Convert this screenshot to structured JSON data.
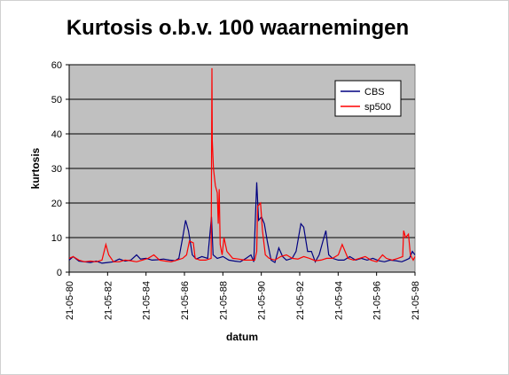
{
  "chart_data": {
    "type": "line",
    "title": "Kurtosis o.b.v. 100 waarnemingen",
    "xlabel": "datum",
    "ylabel": "kurtosis",
    "ylim": [
      0,
      60
    ],
    "yticks": [
      0,
      10,
      20,
      30,
      40,
      50,
      60
    ],
    "xlim": [
      "1980-05-21",
      "1998-05-21"
    ],
    "xticks": [
      "21-05-80",
      "21-05-82",
      "21-05-84",
      "21-05-86",
      "21-05-88",
      "21-05-90",
      "21-05-92",
      "21-05-94",
      "21-05-96",
      "21-05-98"
    ],
    "grid": "horizontal",
    "background": "#c0c0c0",
    "legend": "top-right",
    "series": [
      {
        "name": "CBS",
        "color": "#000080",
        "points": [
          [
            1980.39,
            3.5
          ],
          [
            1980.6,
            4.5
          ],
          [
            1980.9,
            3.2
          ],
          [
            1981.2,
            3.0
          ],
          [
            1981.5,
            2.8
          ],
          [
            1981.8,
            3.2
          ],
          [
            1982.1,
            2.6
          ],
          [
            1982.4,
            2.8
          ],
          [
            1982.7,
            3.0
          ],
          [
            1983.0,
            3.8
          ],
          [
            1983.3,
            3.2
          ],
          [
            1983.6,
            3.5
          ],
          [
            1983.9,
            5.0
          ],
          [
            1984.1,
            3.8
          ],
          [
            1984.4,
            4.0
          ],
          [
            1984.7,
            3.5
          ],
          [
            1985.0,
            3.6
          ],
          [
            1985.3,
            3.8
          ],
          [
            1985.6,
            3.5
          ],
          [
            1985.9,
            3.3
          ],
          [
            1986.1,
            4.0
          ],
          [
            1986.3,
            10.0
          ],
          [
            1986.45,
            15.0
          ],
          [
            1986.6,
            12.0
          ],
          [
            1986.8,
            5.0
          ],
          [
            1987.0,
            3.8
          ],
          [
            1987.3,
            4.5
          ],
          [
            1987.6,
            4.0
          ],
          [
            1987.8,
            16.0
          ],
          [
            1987.88,
            5.0
          ],
          [
            1988.1,
            4.0
          ],
          [
            1988.4,
            4.5
          ],
          [
            1988.7,
            3.5
          ],
          [
            1989.0,
            3.2
          ],
          [
            1989.3,
            3.0
          ],
          [
            1989.6,
            4.0
          ],
          [
            1989.85,
            5.0
          ],
          [
            1990.0,
            3.0
          ],
          [
            1990.15,
            26.0
          ],
          [
            1990.25,
            15.0
          ],
          [
            1990.4,
            16.0
          ],
          [
            1990.55,
            14.0
          ],
          [
            1990.7,
            9.0
          ],
          [
            1990.9,
            3.5
          ],
          [
            1991.1,
            2.8
          ],
          [
            1991.3,
            7.0
          ],
          [
            1991.5,
            4.5
          ],
          [
            1991.7,
            3.5
          ],
          [
            1992.0,
            4.0
          ],
          [
            1992.2,
            6.0
          ],
          [
            1992.45,
            14.0
          ],
          [
            1992.6,
            13.0
          ],
          [
            1992.8,
            6.0
          ],
          [
            1993.0,
            6.0
          ],
          [
            1993.2,
            3.0
          ],
          [
            1993.4,
            5.0
          ],
          [
            1993.6,
            9.0
          ],
          [
            1993.75,
            12.0
          ],
          [
            1993.9,
            5.0
          ],
          [
            1994.1,
            4.0
          ],
          [
            1994.4,
            3.5
          ],
          [
            1994.7,
            3.5
          ],
          [
            1995.0,
            4.5
          ],
          [
            1995.3,
            3.5
          ],
          [
            1995.6,
            4.0
          ],
          [
            1995.9,
            3.5
          ],
          [
            1996.2,
            4.0
          ],
          [
            1996.5,
            3.3
          ],
          [
            1996.8,
            3.0
          ],
          [
            1997.1,
            3.5
          ],
          [
            1997.4,
            3.3
          ],
          [
            1997.7,
            3.0
          ],
          [
            1997.9,
            3.5
          ],
          [
            1998.1,
            4.0
          ],
          [
            1998.25,
            6.0
          ],
          [
            1998.39,
            5.0
          ]
        ]
      },
      {
        "name": "sp500",
        "color": "#ff0000",
        "points": [
          [
            1980.39,
            4.0
          ],
          [
            1980.6,
            4.5
          ],
          [
            1980.9,
            3.5
          ],
          [
            1981.2,
            3.0
          ],
          [
            1981.5,
            3.2
          ],
          [
            1981.8,
            3.0
          ],
          [
            1982.1,
            3.5
          ],
          [
            1982.3,
            8.0
          ],
          [
            1982.45,
            5.0
          ],
          [
            1982.7,
            3.0
          ],
          [
            1983.0,
            3.0
          ],
          [
            1983.3,
            3.5
          ],
          [
            1983.6,
            3.3
          ],
          [
            1983.9,
            3.0
          ],
          [
            1984.2,
            3.5
          ],
          [
            1984.5,
            4.0
          ],
          [
            1984.8,
            5.0
          ],
          [
            1985.1,
            3.5
          ],
          [
            1985.4,
            3.2
          ],
          [
            1985.7,
            3.0
          ],
          [
            1986.0,
            3.5
          ],
          [
            1986.3,
            4.0
          ],
          [
            1986.5,
            5.0
          ],
          [
            1986.65,
            9.0
          ],
          [
            1986.85,
            8.5
          ],
          [
            1986.95,
            4.0
          ],
          [
            1987.2,
            3.5
          ],
          [
            1987.5,
            3.5
          ],
          [
            1987.78,
            4.0
          ],
          [
            1987.82,
            59.0
          ],
          [
            1987.84,
            38.0
          ],
          [
            1987.9,
            30.0
          ],
          [
            1988.0,
            25.0
          ],
          [
            1988.1,
            23.0
          ],
          [
            1988.15,
            14.0
          ],
          [
            1988.2,
            24.0
          ],
          [
            1988.25,
            8.0
          ],
          [
            1988.35,
            5.0
          ],
          [
            1988.45,
            10.0
          ],
          [
            1988.6,
            6.0
          ],
          [
            1988.9,
            4.0
          ],
          [
            1989.2,
            3.8
          ],
          [
            1989.5,
            3.5
          ],
          [
            1989.8,
            3.5
          ],
          [
            1990.05,
            3.5
          ],
          [
            1990.15,
            6.0
          ],
          [
            1990.2,
            19.0
          ],
          [
            1990.35,
            20.0
          ],
          [
            1990.45,
            12.0
          ],
          [
            1990.6,
            5.0
          ],
          [
            1990.8,
            4.0
          ],
          [
            1991.1,
            3.5
          ],
          [
            1991.4,
            4.5
          ],
          [
            1991.7,
            5.0
          ],
          [
            1992.0,
            4.0
          ],
          [
            1992.3,
            3.8
          ],
          [
            1992.6,
            4.5
          ],
          [
            1992.9,
            4.0
          ],
          [
            1993.2,
            3.3
          ],
          [
            1993.5,
            3.5
          ],
          [
            1993.8,
            4.0
          ],
          [
            1994.1,
            4.0
          ],
          [
            1994.4,
            5.0
          ],
          [
            1994.6,
            8.0
          ],
          [
            1994.9,
            4.0
          ],
          [
            1995.2,
            3.5
          ],
          [
            1995.5,
            4.0
          ],
          [
            1995.8,
            4.5
          ],
          [
            1996.1,
            3.5
          ],
          [
            1996.4,
            3.0
          ],
          [
            1996.7,
            5.0
          ],
          [
            1996.9,
            4.0
          ],
          [
            1997.2,
            3.5
          ],
          [
            1997.5,
            4.0
          ],
          [
            1997.75,
            4.5
          ],
          [
            1997.8,
            12.0
          ],
          [
            1997.9,
            10.0
          ],
          [
            1998.05,
            11.0
          ],
          [
            1998.15,
            5.0
          ],
          [
            1998.3,
            3.5
          ],
          [
            1998.39,
            4.5
          ]
        ]
      }
    ]
  }
}
